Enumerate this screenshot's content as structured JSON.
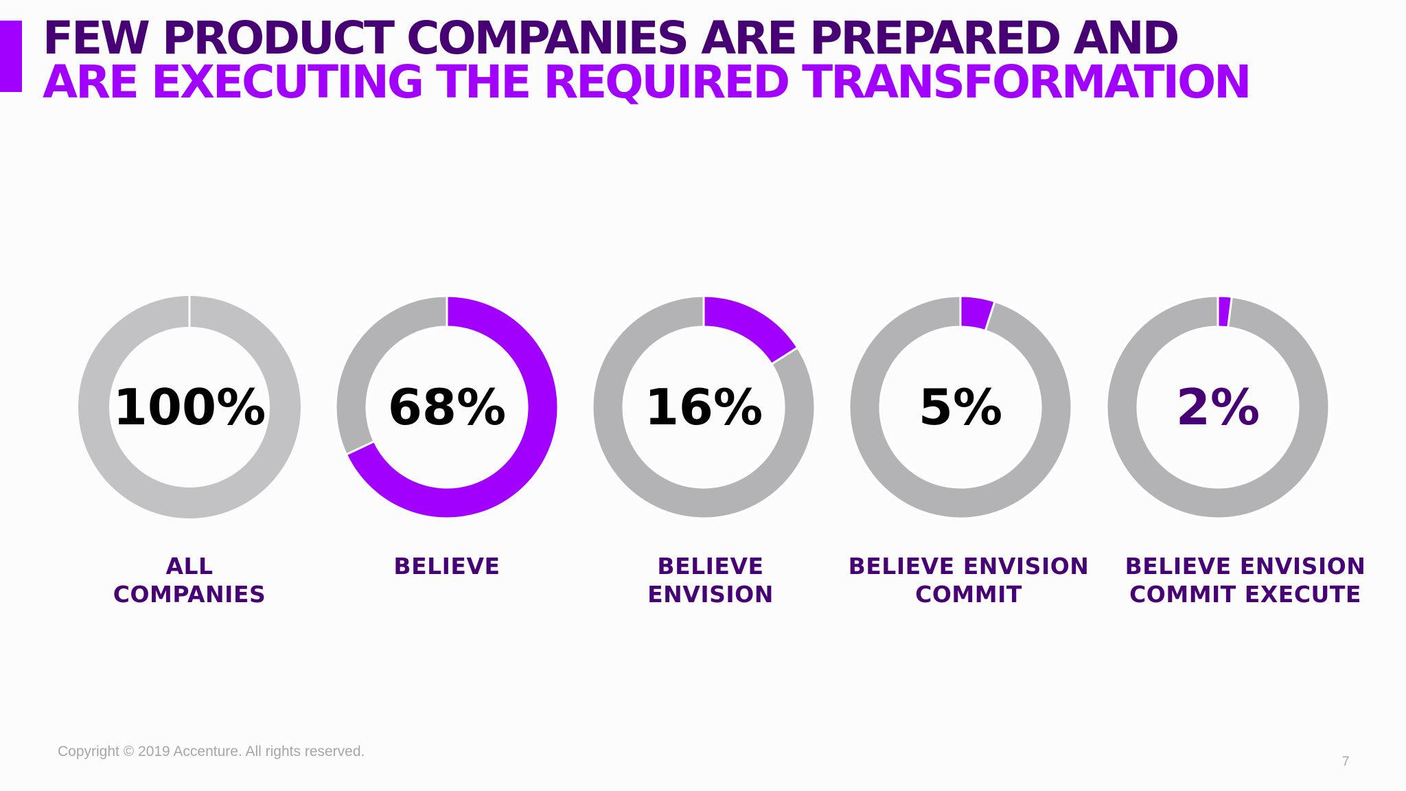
{
  "slide": {
    "title_line_1": "FEW PRODUCT COMPANIES ARE PREPARED AND",
    "title_line_2": "ARE EXECUTING THE REQUIRED TRANSFORMATION",
    "copyright": "Copyright © 2019 Accenture. All rights reserved.",
    "page_number": "7"
  },
  "colors": {
    "accent": "#a100ff",
    "dark_purple": "#460073",
    "ring_grey": "#b3b2b5",
    "ring_light_grey": "#c2c1c4",
    "text_dark": "#000000",
    "background": "#fcfcfd"
  },
  "chart_data": {
    "type": "pie",
    "subtype": "donut",
    "title": "",
    "series": [
      {
        "value_label": "100%",
        "percent": 100,
        "category_lines": [
          "ALL",
          "COMPANIES"
        ],
        "value_label_color": "#000000"
      },
      {
        "value_label": "68%",
        "percent": 68,
        "category_lines": [
          "BELIEVE"
        ],
        "value_label_color": "#000000"
      },
      {
        "value_label": "16%",
        "percent": 16,
        "category_lines": [
          "BELIEVE",
          "ENVISION"
        ],
        "value_label_color": "#000000"
      },
      {
        "value_label": "5%",
        "percent": 5,
        "category_lines": [
          "BELIEVE ENVISION",
          "COMMIT"
        ],
        "value_label_color": "#000000"
      },
      {
        "value_label": "2%",
        "percent": 2,
        "category_lines": [
          "BELIEVE ENVISION",
          "COMMIT EXECUTE"
        ],
        "value_label_color": "#460073"
      }
    ]
  }
}
